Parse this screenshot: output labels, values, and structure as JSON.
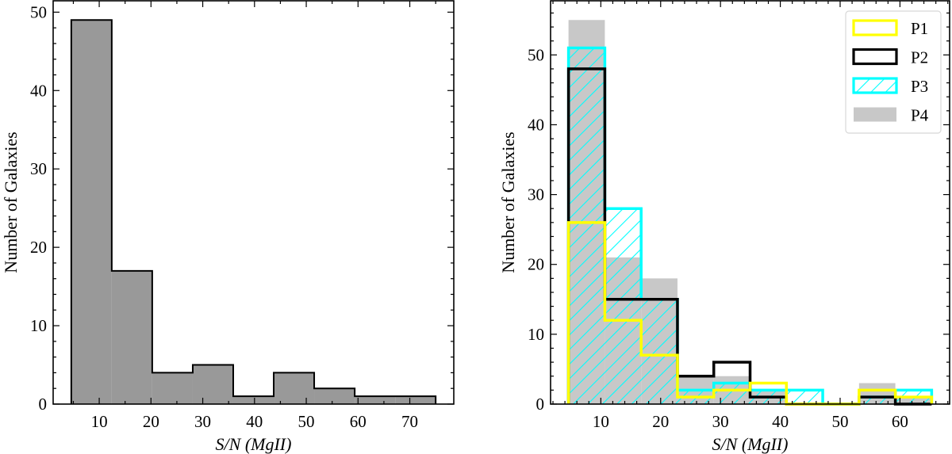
{
  "chart_data": [
    {
      "type": "bar",
      "histtype": "stepfilled",
      "xlabel": "S/N (MgII)",
      "ylabel": "Number of Galaxies",
      "bin_edges": [
        4.6,
        12.42,
        20.24,
        28.07,
        35.89,
        43.71,
        51.53,
        59.36,
        67.18,
        75.0
      ],
      "values": [
        49,
        17,
        4,
        5,
        1,
        4,
        2,
        1,
        1
      ],
      "xlim": [
        1.1,
        78.5
      ],
      "ylim": [
        0,
        51.45
      ],
      "xticks": [
        10,
        20,
        30,
        40,
        50,
        60,
        70
      ],
      "yticks": [
        0,
        10,
        20,
        30,
        40,
        50
      ],
      "fill_color": "#999999",
      "edge_color": "#000000",
      "grid": false
    },
    {
      "type": "bar",
      "histtype": "step",
      "xlabel": "S/N (MgII)",
      "ylabel": "Number of Galaxies",
      "bin_edges": [
        4.6,
        10.67,
        16.74,
        22.81,
        28.88,
        34.95,
        41.02,
        47.09,
        53.16,
        59.23,
        65.3
      ],
      "xlim": [
        1.6,
        68.3
      ],
      "ylim": [
        0,
        57.75
      ],
      "xticks": [
        10,
        20,
        30,
        40,
        50,
        60
      ],
      "yticks": [
        0,
        10,
        20,
        30,
        40,
        50
      ],
      "legend_position": "top-right",
      "grid": false,
      "series": [
        {
          "name": "P1",
          "values": [
            26,
            12,
            7,
            1,
            2,
            3,
            0,
            0,
            2,
            1
          ],
          "color": "#ffff00",
          "style": "outline"
        },
        {
          "name": "P2",
          "values": [
            48,
            15,
            15,
            4,
            6,
            1,
            0,
            0,
            1,
            0
          ],
          "color": "#000000",
          "style": "outline"
        },
        {
          "name": "P3",
          "values": [
            51,
            28,
            15,
            2,
            3,
            2,
            2,
            0,
            1,
            2
          ],
          "color": "#00ffff",
          "style": "hatched"
        },
        {
          "name": "P4",
          "values": [
            55,
            21,
            18,
            4,
            4,
            2,
            0,
            0,
            3,
            1
          ],
          "color": "#c8c8c8",
          "style": "filled"
        }
      ]
    }
  ]
}
